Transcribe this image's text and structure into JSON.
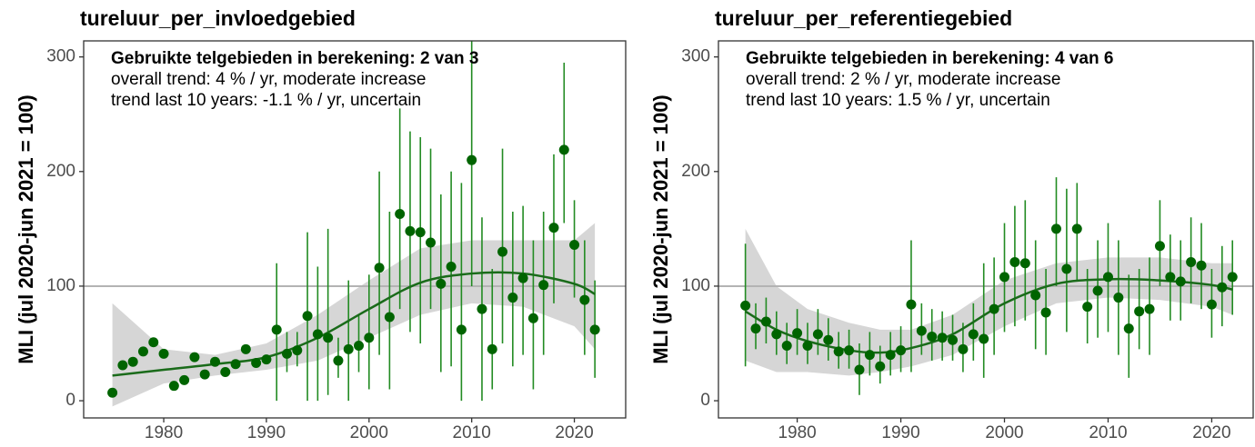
{
  "chart_data": [
    {
      "type": "scatter",
      "title": "tureluur_per_invloedgebied",
      "annotations": [
        "Gebruikte telgebieden in berekening: 2 van 3",
        "overall trend: 4 % / yr, moderate increase",
        "trend last 10 years: -1.1 % / yr, uncertain"
      ],
      "ylabel": "MLI (jul 2020-jun 2021 = 100)",
      "x": [
        1975,
        1976,
        1977,
        1978,
        1979,
        1980,
        1981,
        1982,
        1983,
        1984,
        1985,
        1986,
        1987,
        1988,
        1989,
        1990,
        1991,
        1992,
        1993,
        1994,
        1995,
        1996,
        1997,
        1998,
        1999,
        2000,
        2001,
        2002,
        2003,
        2004,
        2005,
        2006,
        2007,
        2008,
        2009,
        2010,
        2011,
        2012,
        2013,
        2014,
        2015,
        2016,
        2017,
        2018,
        2019,
        2020,
        2021,
        2022
      ],
      "values": [
        7,
        31,
        34,
        43,
        51,
        41,
        13,
        18,
        38,
        23,
        34,
        25,
        32,
        45,
        33,
        36,
        62,
        41,
        44,
        74,
        58,
        55,
        35,
        45,
        48,
        55,
        116,
        73,
        163,
        148,
        147,
        138,
        102,
        117,
        62,
        210,
        80,
        45,
        130,
        90,
        107,
        72,
        101,
        151,
        219,
        136,
        88,
        62
      ],
      "lower": [
        null,
        null,
        null,
        null,
        null,
        null,
        null,
        null,
        null,
        null,
        null,
        null,
        null,
        null,
        null,
        null,
        0,
        25,
        30,
        0,
        0,
        5,
        20,
        0,
        25,
        10,
        40,
        10,
        80,
        60,
        50,
        80,
        25,
        30,
        0,
        100,
        0,
        10,
        50,
        30,
        40,
        10,
        40,
        85,
        155,
        90,
        40,
        20
      ],
      "upper": [
        null,
        null,
        null,
        null,
        null,
        null,
        null,
        null,
        null,
        null,
        null,
        null,
        null,
        null,
        null,
        null,
        120,
        60,
        60,
        147,
        117,
        150,
        55,
        105,
        75,
        110,
        200,
        165,
        255,
        235,
        230,
        220,
        180,
        200,
        190,
        320,
        160,
        115,
        220,
        165,
        170,
        140,
        165,
        215,
        295,
        175,
        140,
        105
      ],
      "color": "#006400",
      "errorbar_color": "#228b22",
      "trend": {
        "x": [
          1975,
          1980,
          1985,
          1990,
          1995,
          2000,
          2005,
          2010,
          2015,
          2020,
          2022
        ],
        "fit": [
          22,
          27,
          32,
          38,
          55,
          80,
          103,
          111,
          111,
          102,
          93
        ],
        "lower": [
          -5,
          15,
          22,
          27,
          35,
          55,
          75,
          85,
          82,
          65,
          45
        ],
        "upper": [
          85,
          45,
          40,
          50,
          75,
          105,
          133,
          140,
          140,
          140,
          155
        ],
        "color": "#1a6b1a",
        "band_color": "#d6d6d6"
      },
      "hline": {
        "value": 100,
        "color": "#b3b3b3"
      },
      "xlim": [
        1972.2,
        2025.0
      ],
      "ylim": [
        -15,
        314
      ],
      "xticks": [
        1980,
        1990,
        2000,
        2010,
        2020
      ],
      "yticks": [
        0,
        100,
        200,
        300
      ]
    },
    {
      "type": "scatter",
      "title": "tureluur_per_referentiegebied",
      "annotations": [
        "Gebruikte telgebieden in berekening: 4 van 6",
        "overall trend: 2 % / yr, moderate increase",
        "trend last 10 years: 1.5 % / yr, uncertain"
      ],
      "ylabel": "MLI (jul 2020-jun 2021 = 100)",
      "x": [
        1975,
        1976,
        1977,
        1978,
        1979,
        1980,
        1981,
        1982,
        1983,
        1984,
        1985,
        1986,
        1987,
        1988,
        1989,
        1990,
        1991,
        1992,
        1993,
        1994,
        1995,
        1996,
        1997,
        1998,
        1999,
        2000,
        2001,
        2002,
        2003,
        2004,
        2005,
        2006,
        2007,
        2008,
        2009,
        2010,
        2011,
        2012,
        2013,
        2014,
        2015,
        2016,
        2017,
        2018,
        2019,
        2020,
        2021,
        2022
      ],
      "values": [
        83,
        63,
        69,
        58,
        48,
        59,
        48,
        58,
        53,
        43,
        44,
        27,
        40,
        30,
        40,
        44,
        84,
        61,
        56,
        55,
        53,
        45,
        58,
        54,
        80,
        108,
        121,
        120,
        92,
        77,
        150,
        115,
        150,
        82,
        96,
        108,
        90,
        63,
        78,
        80,
        135,
        108,
        104,
        121,
        118,
        84,
        99,
        108
      ],
      "lower": [
        30,
        45,
        50,
        40,
        32,
        40,
        32,
        40,
        35,
        28,
        28,
        5,
        22,
        15,
        22,
        25,
        25,
        40,
        35,
        35,
        35,
        25,
        35,
        20,
        40,
        60,
        65,
        70,
        45,
        40,
        100,
        60,
        105,
        50,
        55,
        60,
        40,
        20,
        45,
        40,
        100,
        70,
        70,
        85,
        80,
        55,
        65,
        75
      ],
      "upper": [
        137,
        85,
        90,
        78,
        68,
        80,
        68,
        80,
        72,
        60,
        62,
        50,
        60,
        48,
        60,
        65,
        140,
        85,
        80,
        78,
        75,
        68,
        85,
        120,
        125,
        155,
        170,
        175,
        140,
        115,
        195,
        185,
        190,
        115,
        140,
        155,
        140,
        110,
        115,
        125,
        175,
        145,
        140,
        160,
        155,
        115,
        135,
        140
      ],
      "color": "#006400",
      "errorbar_color": "#228b22",
      "trend": {
        "x": [
          1975,
          1978,
          1981,
          1985,
          1988,
          1991,
          1995,
          2000,
          2005,
          2010,
          2015,
          2020,
          2022
        ],
        "fit": [
          78,
          62,
          52,
          44,
          42,
          46,
          58,
          85,
          102,
          106,
          105,
          101,
          97
        ],
        "lower": [
          35,
          25,
          25,
          22,
          25,
          30,
          40,
          65,
          85,
          90,
          88,
          82,
          75
        ],
        "upper": [
          150,
          100,
          80,
          68,
          62,
          62,
          75,
          105,
          120,
          125,
          125,
          120,
          120
        ],
        "color": "#1a6b1a",
        "band_color": "#d6d6d6"
      },
      "hline": {
        "value": 100,
        "color": "#b3b3b3"
      },
      "xlim": [
        1972.4,
        2024.0
      ],
      "ylim": [
        -15,
        314
      ],
      "xticks": [
        1980,
        1990,
        2000,
        2010,
        2020
      ],
      "yticks": [
        0,
        100,
        200,
        300
      ]
    }
  ]
}
